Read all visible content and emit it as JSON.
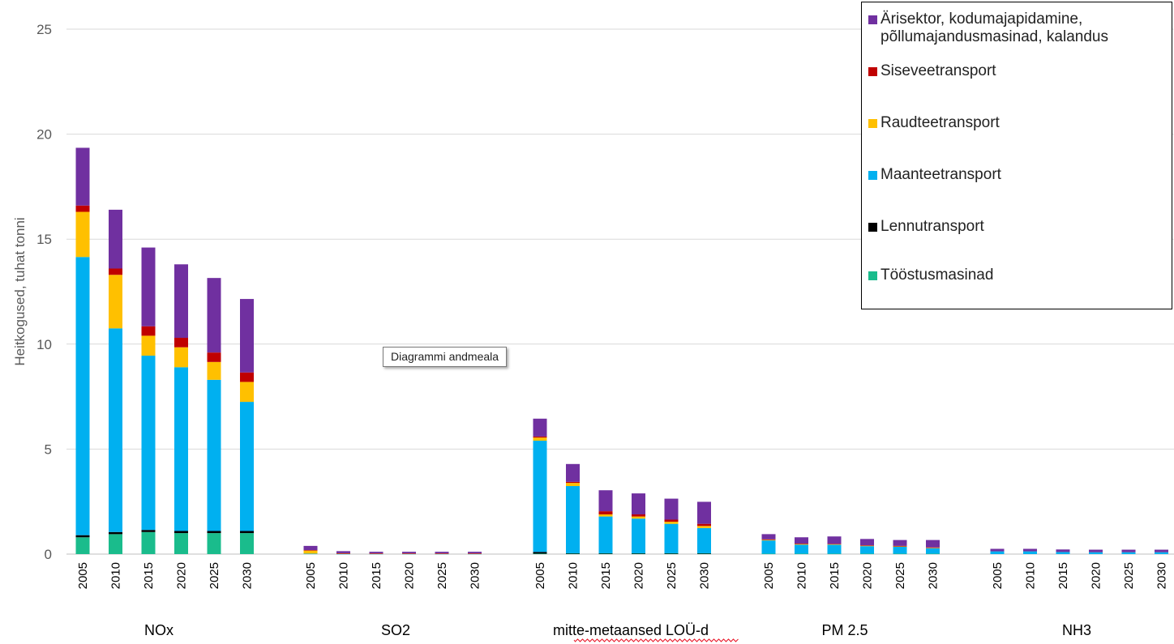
{
  "chart_data": {
    "type": "bar",
    "stacked": true,
    "ylabel": "Heitkogused, tuhat tonni",
    "ylim": [
      0,
      25
    ],
    "yticks": [
      0,
      5,
      10,
      15,
      20,
      25
    ],
    "grid": true,
    "legend_position": "top-right",
    "groups": [
      "NOx",
      "SO2",
      "mitte-metaansed LOÜ-d",
      "PM 2.5",
      "NH3"
    ],
    "years": [
      "2005",
      "2010",
      "2015",
      "2020",
      "2025",
      "2030"
    ],
    "series": [
      {
        "name": "Tööstusmasinad",
        "color": "#1ABC8C",
        "values": [
          [
            0.8,
            0.95,
            1.05,
            1.0,
            1.0,
            1.0
          ],
          [
            0,
            0,
            0,
            0,
            0,
            0
          ],
          [
            0.02,
            0.02,
            0.02,
            0.02,
            0.02,
            0.02
          ],
          [
            0.02,
            0.02,
            0.02,
            0.02,
            0.02,
            0.02
          ],
          [
            0,
            0,
            0,
            0,
            0,
            0
          ]
        ]
      },
      {
        "name": "Lennutransport",
        "color": "#000000",
        "values": [
          [
            0.1,
            0.1,
            0.1,
            0.1,
            0.1,
            0.1
          ],
          [
            0,
            0,
            0,
            0,
            0,
            0
          ],
          [
            0.08,
            0.02,
            0.02,
            0.02,
            0.02,
            0.02
          ],
          [
            0,
            0,
            0,
            0,
            0,
            0
          ],
          [
            0,
            0,
            0,
            0,
            0,
            0
          ]
        ]
      },
      {
        "name": "Maanteetransport",
        "color": "#00B0F0",
        "values": [
          [
            13.25,
            9.7,
            8.3,
            7.8,
            7.2,
            6.15
          ],
          [
            0.02,
            0.01,
            0.01,
            0.01,
            0.01,
            0.01
          ],
          [
            5.3,
            3.2,
            1.75,
            1.65,
            1.4,
            1.2
          ],
          [
            0.63,
            0.43,
            0.43,
            0.36,
            0.33,
            0.26
          ],
          [
            0.13,
            0.13,
            0.1,
            0.09,
            0.09,
            0.09
          ]
        ]
      },
      {
        "name": "Raudteetransport",
        "color": "#FFC000",
        "values": [
          [
            2.15,
            2.55,
            0.95,
            0.95,
            0.85,
            0.95
          ],
          [
            0.15,
            0.02,
            0.01,
            0.01,
            0.01,
            0.01
          ],
          [
            0.15,
            0.15,
            0.1,
            0.1,
            0.1,
            0.1
          ],
          [
            0.03,
            0.03,
            0.02,
            0.02,
            0.02,
            0.02
          ],
          [
            0,
            0,
            0,
            0,
            0,
            0
          ]
        ]
      },
      {
        "name": "Siseveetransport",
        "color": "#C00000",
        "values": [
          [
            0.3,
            0.3,
            0.45,
            0.45,
            0.45,
            0.45
          ],
          [
            0.02,
            0.01,
            0.01,
            0.01,
            0.01,
            0.01
          ],
          [
            0.05,
            0.05,
            0.15,
            0.1,
            0.1,
            0.1
          ],
          [
            0.02,
            0.02,
            0.02,
            0.02,
            0.02,
            0.02
          ],
          [
            0,
            0,
            0,
            0,
            0,
            0
          ]
        ]
      },
      {
        "name": "Ärisektor, kodumajapidamine, põllumajandusmasinad, kalandus",
        "color": "#7030A0",
        "values": [
          [
            2.75,
            2.8,
            3.75,
            3.5,
            3.55,
            3.5
          ],
          [
            0.2,
            0.1,
            0.08,
            0.08,
            0.08,
            0.08
          ],
          [
            0.85,
            0.85,
            1.0,
            1.0,
            1.0,
            1.05
          ],
          [
            0.25,
            0.3,
            0.35,
            0.3,
            0.28,
            0.35
          ],
          [
            0.12,
            0.12,
            0.12,
            0.12,
            0.12,
            0.12
          ]
        ]
      }
    ]
  },
  "tooltip": "Diagrammi andmeala"
}
